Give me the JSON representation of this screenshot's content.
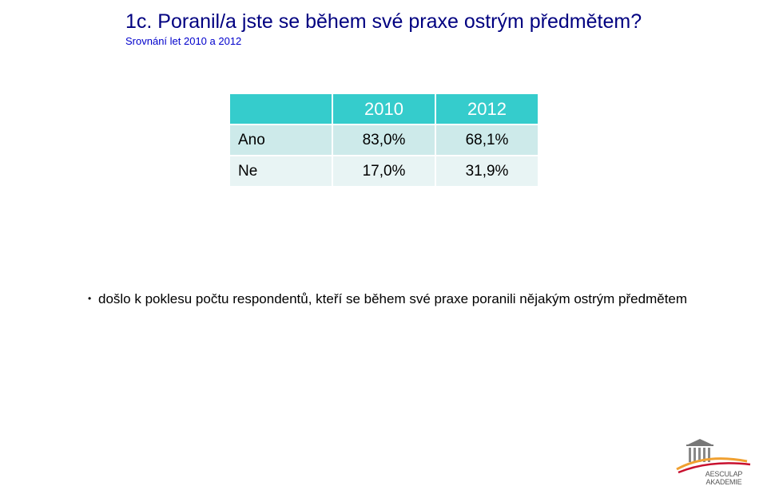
{
  "slide": {
    "title": "1c. Poranil/a jste se během své praxe ostrým předmětem?",
    "subtitle": "Srovnání let  2010 a 2012"
  },
  "table": {
    "headers": [
      "",
      "2010",
      "2012"
    ],
    "rows": [
      {
        "label": "Ano",
        "values": [
          "83,0%",
          "68,1%"
        ]
      },
      {
        "label": "Ne",
        "values": [
          "17,0%",
          "31,9%"
        ]
      }
    ]
  },
  "note": {
    "bullet": "•",
    "text": "došlo k poklesu počtu respondentů, kteří se během své praxe poranili nějakým ostrým předmětem"
  },
  "logo": {
    "line1": "AESCULAP",
    "line2": "AKADEMIE",
    "colors": {
      "building": "#777777",
      "swoosh_orange": "#f0a030",
      "swoosh_red": "#c8102e"
    }
  },
  "colors": {
    "title": "#000080",
    "subtitle": "#0000cc",
    "header_bg": "#35cccc",
    "row_a_bg": "#cdeaea",
    "row_b_bg": "#e8f4f4"
  }
}
